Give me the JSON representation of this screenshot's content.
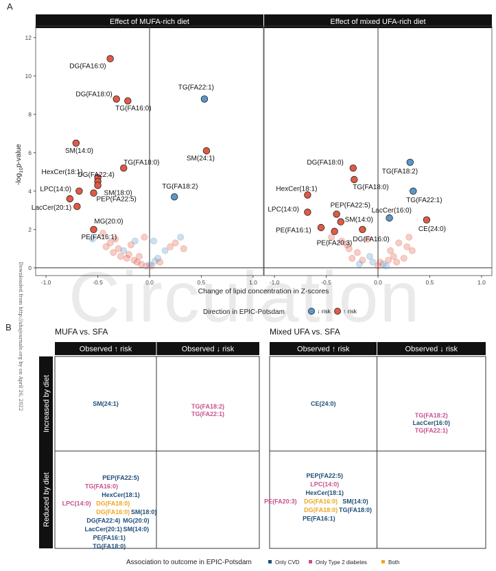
{
  "panel_a_label": "A",
  "panel_b_label": "B",
  "watermark": "Circulation",
  "downloaded_note": "Downloaded from http://ahajournals.org by on April 26, 2022",
  "chart_data": [
    {
      "type": "scatter",
      "title": "Effect of MUFA-rich diet",
      "xlabel": "Change of lipid concentration in Z-scores",
      "ylabel": "-log10 p-value",
      "xlim": [
        -1.1,
        1.1
      ],
      "ylim": [
        -0.4,
        12.6
      ],
      "xticks": [
        "-1.0",
        "-0.5",
        "0.0",
        "0.5",
        "1.0"
      ],
      "yticks": [
        "0",
        "2",
        "4",
        "6",
        "8",
        "10",
        "12"
      ],
      "grid": false,
      "legend_title": "Direction in EPIC-Potsdam",
      "legend": [
        "↓ risk",
        "↑ risk"
      ],
      "labeled_points": [
        {
          "label": "DG(FA16:0)",
          "x": -0.38,
          "y": 10.9,
          "dir": "up"
        },
        {
          "label": "DG(FA18:0)",
          "x": -0.32,
          "y": 8.8,
          "dir": "up"
        },
        {
          "label": "TG(FA16:0)",
          "x": -0.21,
          "y": 8.7,
          "dir": "up"
        },
        {
          "label": "TG(FA22:1)",
          "x": 0.53,
          "y": 8.8,
          "dir": "down"
        },
        {
          "label": "SM(14:0)",
          "x": -0.71,
          "y": 6.5,
          "dir": "up"
        },
        {
          "label": "SM(24:1)",
          "x": 0.55,
          "y": 6.1,
          "dir": "up"
        },
        {
          "label": "TG(FA18:0)",
          "x": -0.25,
          "y": 5.2,
          "dir": "up"
        },
        {
          "label": "DG(FA22:4)",
          "x": -0.5,
          "y": 4.7,
          "dir": "up"
        },
        {
          "label": "HexCer(18:1)",
          "x": -0.5,
          "y": 4.5,
          "dir": "up"
        },
        {
          "label": "SM(18:0)",
          "x": -0.5,
          "y": 4.3,
          "dir": "up"
        },
        {
          "label": "LPC(14:0)",
          "x": -0.68,
          "y": 4.0,
          "dir": "up"
        },
        {
          "label": "PEP(FA22:5)",
          "x": -0.54,
          "y": 3.9,
          "dir": "up"
        },
        {
          "label": "TG(FA18:2)",
          "x": 0.24,
          "y": 3.7,
          "dir": "down"
        },
        {
          "label": "LacCer(20:1)",
          "x": -0.77,
          "y": 3.6,
          "dir": "up"
        },
        {
          "label": "MG(20:0)",
          "x": -0.7,
          "y": 3.2,
          "dir": "up"
        },
        {
          "label": "PE(FA16:1)",
          "x": -0.54,
          "y": 2.0,
          "dir": "up"
        }
      ],
      "background_points": [
        {
          "x": -0.05,
          "y": 1.6,
          "dir": "up"
        },
        {
          "x": 0.04,
          "y": 1.4,
          "dir": "down"
        },
        {
          "x": -0.55,
          "y": 1.5,
          "dir": "down"
        },
        {
          "x": -0.45,
          "y": 1.8,
          "dir": "up"
        },
        {
          "x": -0.38,
          "y": 1.3,
          "dir": "up"
        },
        {
          "x": -0.3,
          "y": 1.0,
          "dir": "up"
        },
        {
          "x": -0.28,
          "y": 0.6,
          "dir": "up"
        },
        {
          "x": -0.22,
          "y": 0.5,
          "dir": "up"
        },
        {
          "x": -0.18,
          "y": 1.2,
          "dir": "up"
        },
        {
          "x": -0.12,
          "y": 0.3,
          "dir": "up"
        },
        {
          "x": -0.08,
          "y": 0.2,
          "dir": "up"
        },
        {
          "x": 0.02,
          "y": 0.1,
          "dir": "up"
        },
        {
          "x": 0.05,
          "y": 0.35,
          "dir": "down"
        },
        {
          "x": 0.08,
          "y": 0.5,
          "dir": "down"
        },
        {
          "x": 0.1,
          "y": 0.3,
          "dir": "up"
        },
        {
          "x": 0.15,
          "y": 0.9,
          "dir": "down"
        },
        {
          "x": 0.2,
          "y": 1.1,
          "dir": "up"
        },
        {
          "x": 0.25,
          "y": 1.3,
          "dir": "up"
        },
        {
          "x": 0.3,
          "y": 1.6,
          "dir": "down"
        },
        {
          "x": 0.33,
          "y": 1.0,
          "dir": "up"
        },
        {
          "x": -0.35,
          "y": 0.8,
          "dir": "up"
        },
        {
          "x": -0.25,
          "y": 0.9,
          "dir": "down"
        },
        {
          "x": -0.42,
          "y": 1.1,
          "dir": "up"
        },
        {
          "x": -0.15,
          "y": 0.4,
          "dir": "up"
        },
        {
          "x": -0.03,
          "y": 0.1,
          "dir": "up"
        },
        {
          "x": 0.0,
          "y": 0.15,
          "dir": "down"
        },
        {
          "x": -0.2,
          "y": 0.7,
          "dir": "up"
        },
        {
          "x": -0.1,
          "y": 0.6,
          "dir": "up"
        },
        {
          "x": -0.33,
          "y": 1.5,
          "dir": "up"
        },
        {
          "x": -0.14,
          "y": 1.4,
          "dir": "down"
        }
      ]
    },
    {
      "type": "scatter",
      "title": "Effect of mixed UFA-rich diet",
      "xlabel": "Change of lipid concentration in Z-scores",
      "ylabel": "-log10 p-value",
      "xlim": [
        -1.1,
        1.1
      ],
      "ylim": [
        -0.4,
        12.6
      ],
      "xticks": [
        "-1.0",
        "-0.5",
        "0.0",
        "0.5",
        "1.0"
      ],
      "grid": false,
      "labeled_points": [
        {
          "label": "DG(FA18:0)",
          "x": -0.24,
          "y": 5.2,
          "dir": "up"
        },
        {
          "label": "TG(FA18:2)",
          "x": 0.31,
          "y": 5.5,
          "dir": "down"
        },
        {
          "label": "TG(FA18:0)",
          "x": -0.23,
          "y": 4.6,
          "dir": "up"
        },
        {
          "label": "HexCer(18:1)",
          "x": -0.68,
          "y": 3.8,
          "dir": "up"
        },
        {
          "label": "TG(FA22:1)",
          "x": 0.34,
          "y": 4.0,
          "dir": "down"
        },
        {
          "label": "LPC(14:0)",
          "x": -0.68,
          "y": 2.9,
          "dir": "up"
        },
        {
          "label": "PEP(FA22:5)",
          "x": -0.4,
          "y": 2.8,
          "dir": "up"
        },
        {
          "label": "LacCer(16:0)",
          "x": 0.11,
          "y": 2.6,
          "dir": "down"
        },
        {
          "label": "SM(14:0)",
          "x": -0.36,
          "y": 2.4,
          "dir": "up"
        },
        {
          "label": "PE(FA16:1)",
          "x": -0.55,
          "y": 2.1,
          "dir": "up"
        },
        {
          "label": "CE(24:0)",
          "x": 0.47,
          "y": 2.5,
          "dir": "up"
        },
        {
          "label": "PE(FA20:3)",
          "x": -0.42,
          "y": 1.9,
          "dir": "up"
        },
        {
          "label": "DG(FA16:0)",
          "x": -0.15,
          "y": 2.0,
          "dir": "up"
        }
      ],
      "background_points": [
        {
          "x": -0.35,
          "y": 1.4,
          "dir": "up"
        },
        {
          "x": -0.28,
          "y": 1.0,
          "dir": "up"
        },
        {
          "x": -0.2,
          "y": 0.8,
          "dir": "up"
        },
        {
          "x": -0.15,
          "y": 0.4,
          "dir": "up"
        },
        {
          "x": -0.1,
          "y": 1.5,
          "dir": "up"
        },
        {
          "x": -0.05,
          "y": 0.3,
          "dir": "down"
        },
        {
          "x": 0.0,
          "y": 0.1,
          "dir": "up"
        },
        {
          "x": 0.05,
          "y": 0.2,
          "dir": "down"
        },
        {
          "x": 0.1,
          "y": 0.4,
          "dir": "up"
        },
        {
          "x": 0.15,
          "y": 0.6,
          "dir": "up"
        },
        {
          "x": 0.2,
          "y": 1.3,
          "dir": "up"
        },
        {
          "x": 0.25,
          "y": 0.5,
          "dir": "up"
        },
        {
          "x": 0.3,
          "y": 1.6,
          "dir": "up"
        },
        {
          "x": 0.33,
          "y": 0.9,
          "dir": "up"
        },
        {
          "x": -0.45,
          "y": 1.6,
          "dir": "up"
        },
        {
          "x": -0.3,
          "y": 1.2,
          "dir": "up"
        },
        {
          "x": -0.18,
          "y": 0.2,
          "dir": "down"
        },
        {
          "x": 0.08,
          "y": 0.1,
          "dir": "down"
        },
        {
          "x": 0.02,
          "y": 0.3,
          "dir": "up"
        },
        {
          "x": -0.08,
          "y": 0.6,
          "dir": "down"
        },
        {
          "x": 0.12,
          "y": 0.9,
          "dir": "up"
        },
        {
          "x": 0.18,
          "y": 0.3,
          "dir": "up"
        },
        {
          "x": -0.25,
          "y": 0.5,
          "dir": "up"
        },
        {
          "x": 0.28,
          "y": 1.1,
          "dir": "up"
        }
      ]
    }
  ],
  "panel_b": {
    "col_headers": [
      "Observed ↑ risk",
      "Observed ↓ risk"
    ],
    "row_headers": [
      "Increased by diet",
      "Reduced by diet"
    ],
    "grids": [
      {
        "title": "MUFA vs. SFA",
        "cells": {
          "inc_up": [
            {
              "t": "SM(24:1)",
              "c": "cvd"
            }
          ],
          "inc_down": [
            {
              "t": "TG(FA18:2)",
              "c": "t2d"
            },
            {
              "t": "TG(FA22:1)",
              "c": "t2d"
            }
          ],
          "red_up": [
            {
              "t": "PEP(FA22:5)",
              "c": "cvd"
            },
            {
              "t": "TG(FA16:0)",
              "c": "t2d"
            },
            {
              "t": "HexCer(18:1)",
              "c": "cvd"
            },
            {
              "t": "LPC(14:0)",
              "c": "t2d"
            },
            {
              "t": "DG(FA18:0)",
              "c": "both"
            },
            {
              "t": "DG(FA16:0)",
              "c": "both"
            },
            {
              "t": "SM(18:0)",
              "c": "cvd"
            },
            {
              "t": "DG(FA22:4)",
              "c": "cvd"
            },
            {
              "t": "MG(20:0)",
              "c": "cvd"
            },
            {
              "t": "LacCer(20:1)",
              "c": "cvd"
            },
            {
              "t": "SM(14:0)",
              "c": "cvd"
            },
            {
              "t": "PE(FA16:1)",
              "c": "cvd"
            },
            {
              "t": "TG(FA18:0)",
              "c": "cvd"
            }
          ]
        }
      },
      {
        "title": "Mixed UFA vs. SFA",
        "cells": {
          "inc_up": [
            {
              "t": "CE(24:0)",
              "c": "cvd"
            }
          ],
          "inc_down": [
            {
              "t": "TG(FA18:2)",
              "c": "t2d"
            },
            {
              "t": "LacCer(16:0)",
              "c": "cvd"
            },
            {
              "t": "TG(FA22:1)",
              "c": "t2d"
            }
          ],
          "red_up": [
            {
              "t": "PEP(FA22:5)",
              "c": "cvd"
            },
            {
              "t": "LPC(14:0)",
              "c": "t2d"
            },
            {
              "t": "HexCer(18:1)",
              "c": "cvd"
            },
            {
              "t": "PE(FA20:3)",
              "c": "t2d"
            },
            {
              "t": "DG(FA16:0)",
              "c": "both"
            },
            {
              "t": "SM(14:0)",
              "c": "cvd"
            },
            {
              "t": "DG(FA18:0)",
              "c": "both"
            },
            {
              "t": "TG(FA18:0)",
              "c": "cvd"
            },
            {
              "t": "PE(FA16:1)",
              "c": "cvd"
            }
          ]
        }
      }
    ],
    "legend_title": "Association to outcome in EPIC-Potsdam",
    "legend": [
      {
        "label": "Only CVD",
        "c": "cvd"
      },
      {
        "label": "Only Type 2 diabetes",
        "c": "t2d"
      },
      {
        "label": "Both",
        "c": "both"
      }
    ]
  },
  "colors": {
    "up_risk": "#e05a44",
    "down_risk": "#5b97c8",
    "cvd": "#1f4e79",
    "t2d": "#c8508e",
    "both": "#f2a51f",
    "header_bg": "#111111"
  }
}
